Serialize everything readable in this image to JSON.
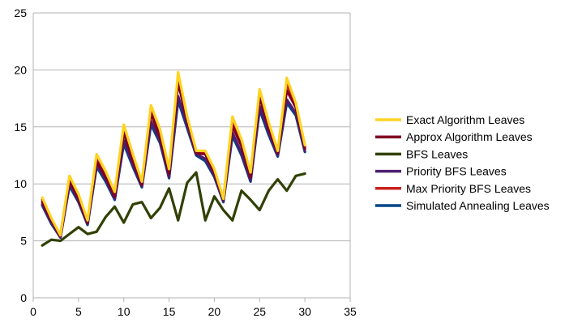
{
  "chart_data": {
    "type": "line",
    "title": "",
    "xlabel": "",
    "ylabel": "",
    "xlim": [
      0,
      35
    ],
    "ylim": [
      0,
      25
    ],
    "x_ticks": [
      0,
      5,
      10,
      15,
      20,
      25,
      30,
      35
    ],
    "y_ticks": [
      0,
      5,
      10,
      15,
      20,
      25
    ],
    "grid": "horizontal",
    "legend_position": "right",
    "x": [
      1,
      2,
      3,
      4,
      5,
      6,
      7,
      8,
      9,
      10,
      11,
      12,
      13,
      14,
      15,
      16,
      17,
      18,
      19,
      20,
      21,
      22,
      23,
      24,
      25,
      26,
      27,
      28,
      29,
      30
    ],
    "series": [
      {
        "name": "Exact Algorithm Leaves",
        "color": "#ffd320",
        "values": [
          8.8,
          7.0,
          5.5,
          10.7,
          9.1,
          6.8,
          12.6,
          11.1,
          9.3,
          15.2,
          12.6,
          10.2,
          16.9,
          14.8,
          11.3,
          19.8,
          15.9,
          12.9,
          12.9,
          11.3,
          8.7,
          15.9,
          13.9,
          11.0,
          18.3,
          15.4,
          12.9,
          19.3,
          17.1,
          13.4
        ]
      },
      {
        "name": "Approx Algorithm Leaves",
        "color": "#7e0021",
        "values": [
          8.4,
          6.8,
          5.4,
          10.3,
          8.7,
          6.6,
          12.0,
          10.6,
          8.9,
          14.5,
          12.0,
          9.9,
          16.2,
          14.1,
          10.9,
          18.9,
          15.5,
          12.7,
          12.6,
          11.0,
          8.6,
          15.1,
          13.3,
          10.6,
          17.6,
          14.9,
          12.7,
          18.2,
          16.7,
          13.1
        ]
      },
      {
        "name": "BFS Leaves",
        "color": "#314004",
        "values": [
          4.6,
          5.1,
          5.0,
          5.6,
          6.2,
          5.6,
          5.8,
          7.1,
          8.0,
          6.6,
          8.2,
          8.4,
          7.0,
          7.9,
          9.6,
          6.8,
          10.1,
          11.0,
          6.8,
          8.9,
          7.7,
          6.8,
          9.4,
          8.6,
          7.7,
          9.4,
          10.4,
          9.4,
          10.7,
          10.9
        ]
      },
      {
        "name": "Priority BFS Leaves",
        "color": "#4b1f6f",
        "values": [
          8.2,
          6.6,
          5.3,
          10.0,
          8.5,
          6.5,
          11.7,
          10.4,
          8.7,
          13.8,
          11.7,
          9.8,
          15.5,
          13.8,
          10.6,
          17.7,
          15.1,
          12.6,
          12.2,
          10.7,
          8.5,
          14.5,
          12.7,
          10.3,
          16.8,
          14.5,
          12.5,
          17.4,
          16.2,
          12.9
        ]
      },
      {
        "name": "Max Priority BFS Leaves",
        "color": "#c9211e",
        "values": [
          8.6,
          6.9,
          5.5,
          10.5,
          8.9,
          6.7,
          12.3,
          10.9,
          9.1,
          14.9,
          12.3,
          10.1,
          16.6,
          14.5,
          11.1,
          19.3,
          15.7,
          12.8,
          12.8,
          11.2,
          8.7,
          15.5,
          13.6,
          10.8,
          18.0,
          15.2,
          12.8,
          18.8,
          16.9,
          13.3
        ]
      },
      {
        "name": "Simulated Annealing Leaves",
        "color": "#004586",
        "values": [
          8.1,
          6.5,
          5.3,
          9.8,
          8.4,
          6.4,
          11.5,
          10.2,
          8.6,
          13.5,
          11.5,
          9.7,
          15.2,
          13.6,
          10.5,
          17.3,
          14.9,
          12.5,
          12.0,
          10.6,
          8.4,
          14.2,
          12.5,
          10.2,
          16.5,
          14.3,
          12.4,
          17.1,
          16.0,
          12.8
        ]
      }
    ]
  }
}
